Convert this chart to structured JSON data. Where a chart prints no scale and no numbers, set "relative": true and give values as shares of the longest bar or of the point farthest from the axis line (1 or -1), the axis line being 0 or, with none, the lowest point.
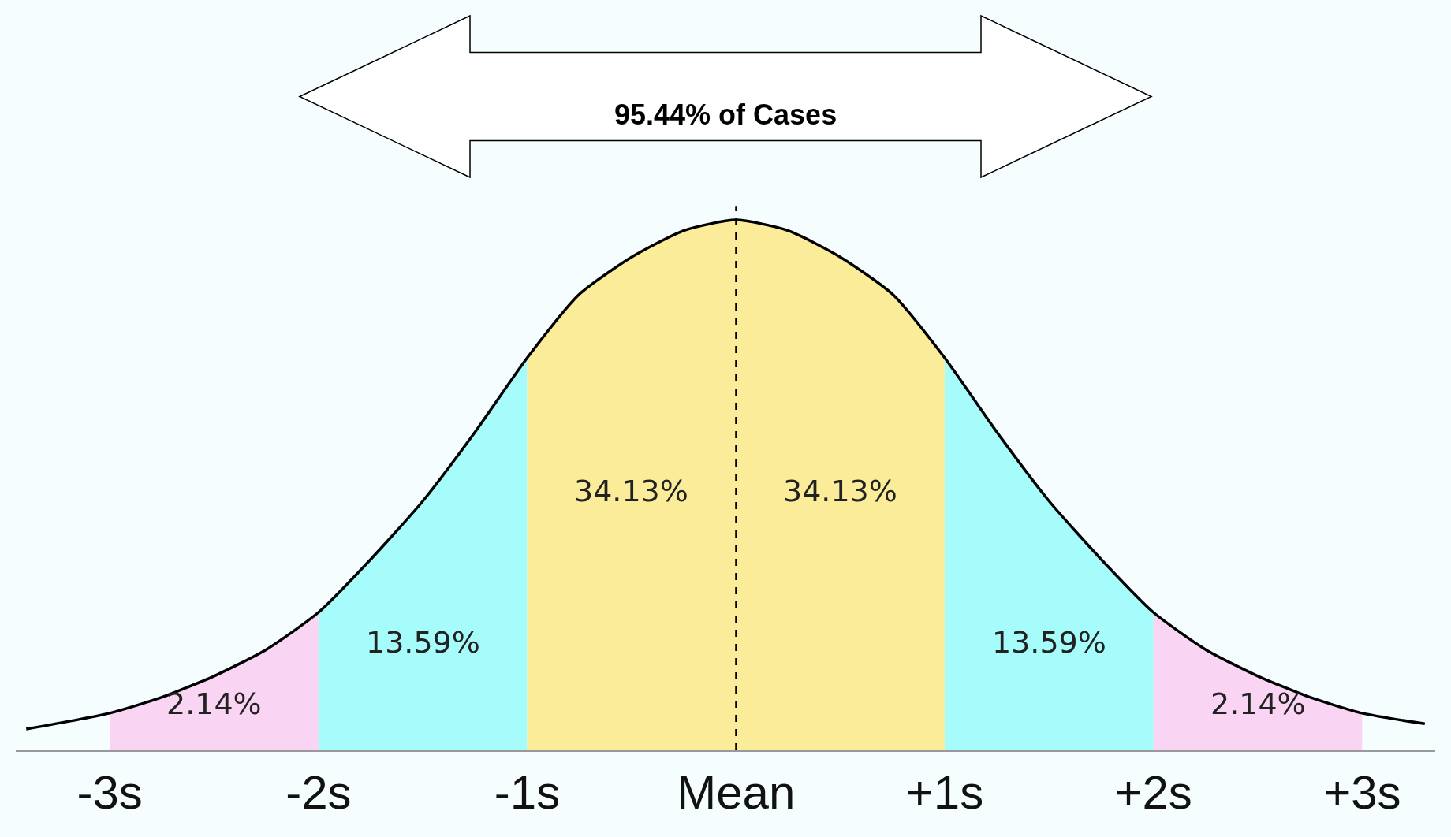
{
  "chart_data": {
    "type": "area",
    "relative": true,
    "xlim": [
      -3.45,
      3.35
    ],
    "xticks": [
      {
        "value": -3,
        "label": "-3s"
      },
      {
        "value": -2,
        "label": "-2s"
      },
      {
        "value": -1,
        "label": "-1s"
      },
      {
        "value": 0,
        "label": "Mean"
      },
      {
        "value": 1,
        "label": "+1s"
      },
      {
        "value": 2,
        "label": "+2s"
      },
      {
        "value": 3,
        "label": "+3s"
      }
    ],
    "grid": false,
    "marker": "none",
    "series": [
      {
        "color": "#f9d5f3",
        "x": [
          -3,
          -2.75,
          -2.5,
          -2.25,
          -2
        ],
        "values": [
          0.07,
          0.1,
          0.14,
          0.19,
          0.26
        ]
      },
      {
        "color": "#a6fbfb",
        "x": [
          -2,
          -1.75,
          -1.5,
          -1.25,
          -1
        ],
        "values": [
          0.26,
          0.36,
          0.47,
          0.6,
          0.74
        ]
      },
      {
        "color": "#fbec9a",
        "x": [
          -1,
          -0.75,
          -0.5,
          -0.25,
          0,
          0.25,
          0.5,
          0.75,
          1
        ],
        "values": [
          0.74,
          0.86,
          0.93,
          0.98,
          1,
          0.98,
          0.93,
          0.86,
          0.74
        ]
      },
      {
        "color": "#a6fbfb",
        "x": [
          1,
          1.25,
          1.5,
          1.75,
          2
        ],
        "values": [
          0.74,
          0.6,
          0.47,
          0.36,
          0.26
        ]
      },
      {
        "color": "#f9d5f3",
        "x": [
          2,
          2.25,
          2.5,
          2.75,
          3
        ],
        "values": [
          0.26,
          0.19,
          0.14,
          0.1,
          0.07
        ]
      },
      {
        "type": "line",
        "color": "#000000",
        "x": [
          -3.4,
          -3,
          -2.75,
          -2.5,
          -2.25,
          -2,
          -1.75,
          -1.5,
          -1.25,
          -1,
          -0.75,
          -0.5,
          -0.25,
          0,
          0.25,
          0.5,
          0.75,
          1,
          1.25,
          1.5,
          1.75,
          2,
          2.25,
          2.5,
          2.75,
          3,
          3.3
        ],
        "values": [
          0.04,
          0.07,
          0.1,
          0.14,
          0.19,
          0.26,
          0.36,
          0.47,
          0.6,
          0.74,
          0.86,
          0.93,
          0.98,
          1,
          0.98,
          0.93,
          0.86,
          0.74,
          0.6,
          0.47,
          0.36,
          0.26,
          0.19,
          0.14,
          0.1,
          0.07,
          0.05
        ]
      }
    ],
    "ref_lines": [
      {
        "axis": "x",
        "value": 0,
        "color": "#000000",
        "line_style": "dashed"
      }
    ],
    "annotations": [
      "34.13%",
      "34.13%",
      "13.59%",
      "13.59%",
      "2.14%",
      "2.14%",
      "95.44% of Cases"
    ]
  }
}
